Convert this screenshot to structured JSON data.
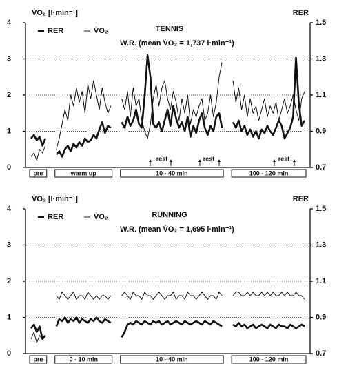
{
  "chart_data": [
    {
      "type": "line",
      "title": "TENNIS",
      "subtitle": "W.R. (mean V̇O₂ = 1,737 l·min⁻¹)",
      "ylabel": "V̇O₂ [l·min⁻¹]",
      "y2label": "RER",
      "ylim": [
        0,
        4
      ],
      "yticks": [
        0,
        1,
        2,
        3,
        4
      ],
      "y2lim": [
        0.7,
        1.5
      ],
      "y2ticks": [
        0.7,
        0.9,
        1.1,
        1.3,
        1.5
      ],
      "grid": true,
      "periods": [
        "pre",
        "warm up",
        "10 - 40 min",
        "100 - 120 min"
      ],
      "annotations": [
        "rest",
        "rest",
        "rest"
      ],
      "series": [
        {
          "name": "RER",
          "axis": "y2",
          "color": "#111",
          "values": [
            0.86,
            0.88,
            0.85,
            0.87,
            0.82,
            0.86,
            null,
            0.77,
            0.79,
            0.76,
            0.8,
            0.82,
            0.79,
            0.83,
            0.81,
            0.84,
            0.82,
            0.86,
            0.84,
            0.85,
            0.88,
            0.86,
            0.91,
            0.95,
            0.89,
            0.93,
            0.92,
            null,
            0.95,
            0.92,
            0.98,
            0.93,
            0.96,
            1.02,
            0.94,
            0.92,
            1.1,
            1.32,
            1.2,
            0.94,
            0.92,
            0.95,
            0.9,
            0.96,
            1.02,
            0.93,
            1.04,
            0.97,
            0.92,
            0.95,
            0.9,
            0.98,
            0.87,
            0.93,
            0.89,
            0.96,
            1.0,
            0.92,
            0.88,
            0.93,
            0.9,
            0.98,
            1.0,
            0.92,
            null,
            0.95,
            0.92,
            0.96,
            0.9,
            0.93,
            0.88,
            0.91,
            0.87,
            0.9,
            0.86,
            0.91,
            0.89,
            0.93,
            0.9,
            0.88,
            0.92,
            0.96,
            0.93,
            0.86,
            0.89,
            0.92,
            0.98,
            1.31,
            1.05,
            0.93,
            0.96
          ]
        },
        {
          "name": "V̇O₂",
          "color": "#111",
          "values": [
            0.3,
            0.4,
            0.2,
            0.5,
            0.4,
            0.6,
            null,
            0.5,
            0.8,
            1.2,
            1.6,
            1.3,
            2.0,
            1.7,
            2.2,
            1.8,
            2.1,
            1.5,
            2.3,
            1.9,
            2.4,
            2.0,
            1.6,
            2.2,
            1.8,
            1.5,
            1.7,
            null,
            1.9,
            1.6,
            2.1,
            1.4,
            2.2,
            1.7,
            1.9,
            1.3,
            1.0,
            0.8,
            1.2,
            1.9,
            2.3,
            1.7,
            2.2,
            2.4,
            1.9,
            1.6,
            2.1,
            1.8,
            1.3,
            1.9,
            1.5,
            2.0,
            1.2,
            1.6,
            1.4,
            1.7,
            1.9,
            1.3,
            1.5,
            2.0,
            1.4,
            1.8,
            2.5,
            2.9,
            null,
            2.4,
            1.8,
            2.2,
            1.6,
            2.0,
            1.4,
            1.9,
            1.5,
            1.7,
            1.3,
            1.6,
            1.9,
            1.4,
            1.7,
            1.5,
            1.8,
            1.3,
            1.6,
            1.9,
            1.5,
            1.7,
            2.0,
            1.6,
            1.3,
            1.9,
            2.1
          ]
        }
      ]
    },
    {
      "type": "line",
      "title": "RUNNING",
      "subtitle": "W.R. (mean V̇O₂ = 1,695 l·min⁻¹)",
      "ylabel": "V̇O₂ [l·min⁻¹]",
      "y2label": "RER",
      "ylim": [
        0,
        4
      ],
      "yticks": [
        0,
        1,
        2,
        3,
        4
      ],
      "y2lim": [
        0.7,
        1.5
      ],
      "y2ticks": [
        0.7,
        0.9,
        1.1,
        1.3,
        1.5
      ],
      "grid": true,
      "periods": [
        "pre",
        "0 - 10 min",
        "10 - 40 min",
        "100 - 120 min"
      ],
      "series": [
        {
          "name": "RER",
          "axis": "y2",
          "color": "#111",
          "values": [
            0.84,
            0.86,
            0.82,
            0.85,
            0.78,
            0.8,
            null,
            0.85,
            0.89,
            0.88,
            0.9,
            0.87,
            0.89,
            0.88,
            0.9,
            0.87,
            0.89,
            0.88,
            0.87,
            0.89,
            0.88,
            0.9,
            0.88,
            0.87,
            0.89,
            0.88,
            0.87,
            null,
            0.79,
            0.82,
            0.86,
            0.87,
            0.86,
            0.88,
            0.87,
            0.86,
            0.88,
            0.87,
            0.86,
            0.88,
            0.87,
            0.88,
            0.86,
            0.87,
            0.88,
            0.86,
            0.87,
            0.88,
            0.87,
            0.86,
            0.88,
            0.87,
            0.86,
            0.87,
            0.88,
            0.87,
            0.86,
            0.88,
            0.87,
            0.86,
            0.88,
            0.87,
            0.86,
            0.85,
            null,
            0.86,
            0.85,
            0.87,
            0.85,
            0.86,
            0.84,
            0.85,
            0.86,
            0.84,
            0.85,
            0.86,
            0.85,
            0.84,
            0.86,
            0.85,
            0.84,
            0.86,
            0.85,
            0.85,
            0.84,
            0.86,
            0.85,
            0.84,
            0.85,
            0.86,
            0.85
          ]
        },
        {
          "name": "V̇O₂",
          "color": "#111",
          "values": [
            0.4,
            0.6,
            0.3,
            0.5,
            0.4,
            0.5,
            null,
            1.6,
            1.5,
            1.7,
            1.6,
            1.5,
            1.6,
            1.7,
            1.5,
            1.6,
            1.6,
            1.5,
            1.7,
            1.6,
            1.5,
            1.6,
            1.5,
            1.6,
            1.6,
            1.5,
            1.6,
            null,
            1.6,
            1.7,
            1.6,
            1.5,
            1.7,
            1.6,
            1.6,
            1.5,
            1.7,
            1.6,
            1.6,
            1.5,
            1.6,
            1.7,
            1.6,
            1.5,
            1.6,
            1.6,
            1.7,
            1.5,
            1.6,
            1.6,
            1.5,
            1.7,
            1.6,
            1.6,
            1.5,
            1.6,
            1.7,
            1.6,
            1.5,
            1.6,
            1.6,
            1.5,
            1.7,
            1.6,
            null,
            1.6,
            1.7,
            1.7,
            1.6,
            1.6,
            1.7,
            1.6,
            1.7,
            1.6,
            1.6,
            1.7,
            1.6,
            1.7,
            1.6,
            1.7,
            1.6,
            1.6,
            1.7,
            1.6,
            1.7,
            1.6,
            1.6,
            1.7,
            1.6,
            1.6,
            1.5
          ]
        }
      ]
    }
  ]
}
